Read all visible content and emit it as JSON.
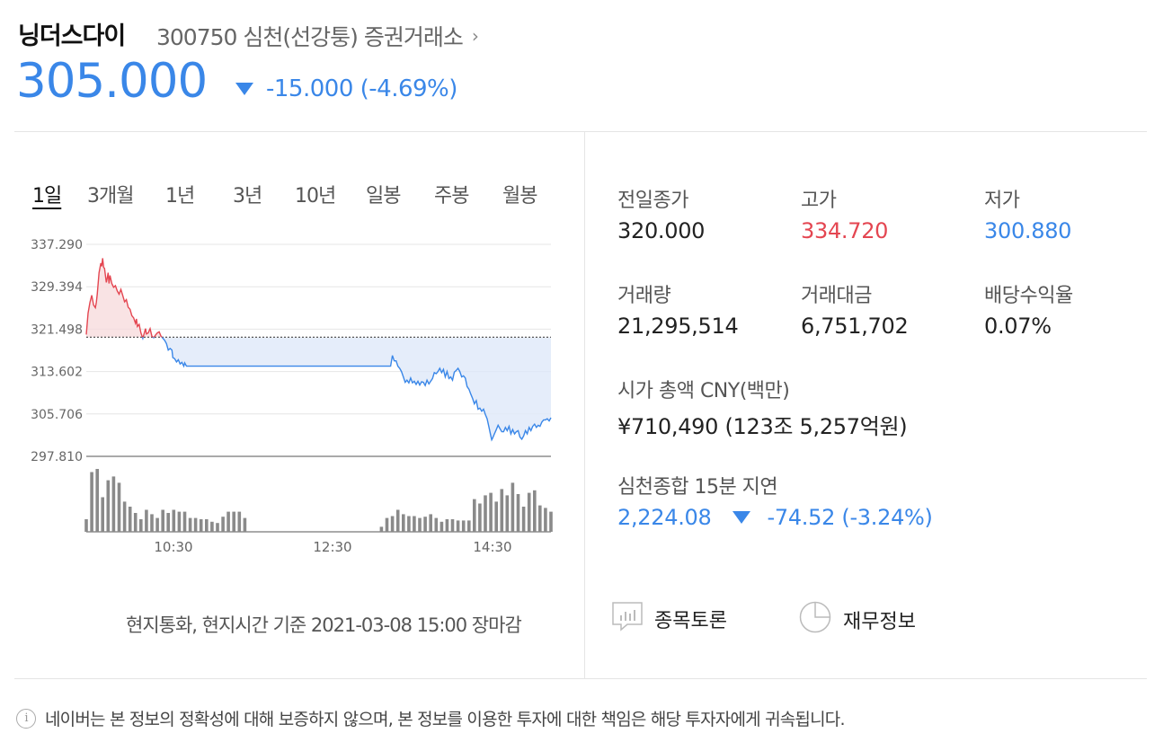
{
  "header": {
    "name": "닝더스다이",
    "meta": "300750 심천(선강퉁) 증권거래소",
    "chevron": "›",
    "price": "305.000",
    "change": "-15.000 (-4.69%)"
  },
  "tabs": [
    "1일",
    "3개월",
    "1년",
    "3년",
    "10년",
    "일봉",
    "주봉",
    "월봉"
  ],
  "active_tab": "1일",
  "chart_data": {
    "type": "line",
    "y_ticks": [
      "337.290",
      "329.394",
      "321.498",
      "313.602",
      "305.706",
      "297.810"
    ],
    "ylim": [
      297.81,
      337.29
    ],
    "x_ticks": [
      "10:30",
      "12:30",
      "14:30"
    ],
    "prev_close": 320.0,
    "up_color": "#e44651",
    "down_color": "#3a87e8",
    "price_series": [
      [
        0,
        320.5
      ],
      [
        2,
        324.5
      ],
      [
        4,
        326.5
      ],
      [
        6,
        327.8
      ],
      [
        8,
        326.0
      ],
      [
        10,
        325.5
      ],
      [
        11,
        326.5
      ],
      [
        12,
        328.0
      ],
      [
        14,
        332.0
      ],
      [
        16,
        333.8
      ],
      [
        17,
        333.2
      ],
      [
        18,
        334.72
      ],
      [
        19,
        333.0
      ],
      [
        20,
        332.8
      ],
      [
        21,
        331.5
      ],
      [
        22,
        330.2
      ],
      [
        23,
        331.0
      ],
      [
        24,
        332.0
      ],
      [
        25,
        330.0
      ],
      [
        26,
        331.5
      ],
      [
        28,
        330.0
      ],
      [
        30,
        329.3
      ],
      [
        32,
        329.6
      ],
      [
        34,
        328.6
      ],
      [
        36,
        328.0
      ],
      [
        38,
        328.9
      ],
      [
        40,
        327.8
      ],
      [
        42,
        326.6
      ],
      [
        44,
        327.0
      ],
      [
        46,
        325.6
      ],
      [
        48,
        325.2
      ],
      [
        50,
        324.0
      ],
      [
        52,
        323.6
      ],
      [
        54,
        322.6
      ],
      [
        55,
        323.4
      ],
      [
        56,
        322.0
      ],
      [
        58,
        322.4
      ],
      [
        60,
        320.8
      ],
      [
        62,
        319.8
      ],
      [
        63,
        320.4
      ],
      [
        65,
        321.6
      ],
      [
        66,
        320.6
      ],
      [
        68,
        320.8
      ],
      [
        70,
        321.6
      ],
      [
        72,
        320.2
      ],
      [
        74,
        319.9
      ],
      [
        76,
        320.4
      ],
      [
        78,
        320.8
      ],
      [
        80,
        321.0
      ],
      [
        82,
        320.2
      ],
      [
        84,
        319.8
      ],
      [
        86,
        319.4
      ],
      [
        88,
        318.8
      ],
      [
        90,
        317.6
      ],
      [
        92,
        317.9
      ],
      [
        94,
        317.6
      ],
      [
        95,
        316.2
      ],
      [
        97,
        316.0
      ],
      [
        99,
        315.4
      ],
      [
        101,
        315.8
      ],
      [
        103,
        315.0
      ],
      [
        105,
        315.3
      ],
      [
        107,
        314.6
      ],
      [
        108,
        315.2
      ],
      [
        110,
        314.6
      ],
      [
        112,
        314.6
      ],
      [
        120,
        314.6
      ],
      [
        160,
        314.6
      ],
      [
        200,
        314.6
      ],
      [
        240,
        314.6
      ],
      [
        300,
        314.6
      ],
      [
        334,
        314.6
      ],
      [
        336,
        316.6
      ],
      [
        338,
        315.6
      ],
      [
        340,
        315.6
      ],
      [
        342,
        314.6
      ],
      [
        344,
        314.2
      ],
      [
        346,
        313.6
      ],
      [
        348,
        312.6
      ],
      [
        350,
        311.6
      ],
      [
        352,
        312.0
      ],
      [
        354,
        311.5
      ],
      [
        356,
        312.4
      ],
      [
        358,
        311.5
      ],
      [
        360,
        311.8
      ],
      [
        362,
        311.2
      ],
      [
        364,
        311.8
      ],
      [
        366,
        311.1
      ],
      [
        368,
        311.7
      ],
      [
        370,
        311.6
      ],
      [
        372,
        311.0
      ],
      [
        374,
        312.0
      ],
      [
        376,
        311.3
      ],
      [
        378,
        311.8
      ],
      [
        380,
        312.3
      ],
      [
        382,
        313.4
      ],
      [
        384,
        313.2
      ],
      [
        386,
        313.6
      ],
      [
        388,
        314.2
      ],
      [
        390,
        313.4
      ],
      [
        392,
        314.0
      ],
      [
        394,
        312.6
      ],
      [
        396,
        313.6
      ],
      [
        398,
        312.3
      ],
      [
        400,
        312.6
      ],
      [
        402,
        312.0
      ],
      [
        404,
        313.5
      ],
      [
        406,
        313.8
      ],
      [
        408,
        314.2
      ],
      [
        410,
        313.6
      ],
      [
        412,
        312.6
      ],
      [
        414,
        312.8
      ],
      [
        416,
        312.4
      ],
      [
        418,
        310.8
      ],
      [
        420,
        310.3
      ],
      [
        422,
        309.4
      ],
      [
        424,
        308.6
      ],
      [
        426,
        307.6
      ],
      [
        428,
        308.2
      ],
      [
        430,
        306.6
      ],
      [
        432,
        306.8
      ],
      [
        434,
        306.2
      ],
      [
        436,
        306.6
      ],
      [
        438,
        305.6
      ],
      [
        440,
        304.8
      ],
      [
        442,
        303.2
      ],
      [
        444,
        301.6
      ],
      [
        445,
        300.88
      ],
      [
        446,
        301.2
      ],
      [
        448,
        302.0
      ],
      [
        450,
        302.8
      ],
      [
        452,
        303.6
      ],
      [
        454,
        303.0
      ],
      [
        456,
        302.4
      ],
      [
        458,
        302.4
      ],
      [
        460,
        303.2
      ],
      [
        462,
        302.6
      ],
      [
        464,
        303.4
      ],
      [
        466,
        302.0
      ],
      [
        468,
        302.8
      ],
      [
        470,
        302.0
      ],
      [
        472,
        302.4
      ],
      [
        474,
        302.6
      ],
      [
        476,
        301.4
      ],
      [
        478,
        301.0
      ],
      [
        480,
        301.6
      ],
      [
        482,
        302.6
      ],
      [
        484,
        302.0
      ],
      [
        486,
        303.2
      ],
      [
        488,
        302.6
      ],
      [
        490,
        303.4
      ],
      [
        492,
        303.8
      ],
      [
        494,
        303.2
      ],
      [
        496,
        303.6
      ],
      [
        498,
        303.4
      ],
      [
        500,
        304.2
      ],
      [
        502,
        304.6
      ],
      [
        504,
        304.6
      ],
      [
        506,
        304.8
      ],
      [
        508,
        304.4
      ],
      [
        510,
        305.0
      ]
    ],
    "volume_bars": [
      [
        0,
        0.2
      ],
      [
        6,
        0.95
      ],
      [
        12,
        1.0
      ],
      [
        18,
        0.55
      ],
      [
        24,
        0.82
      ],
      [
        30,
        0.88
      ],
      [
        36,
        0.78
      ],
      [
        42,
        0.48
      ],
      [
        48,
        0.4
      ],
      [
        54,
        0.3
      ],
      [
        60,
        0.2
      ],
      [
        66,
        0.35
      ],
      [
        72,
        0.28
      ],
      [
        78,
        0.22
      ],
      [
        84,
        0.35
      ],
      [
        90,
        0.3
      ],
      [
        96,
        0.35
      ],
      [
        102,
        0.32
      ],
      [
        108,
        0.32
      ],
      [
        114,
        0.22
      ],
      [
        120,
        0.22
      ],
      [
        126,
        0.2
      ],
      [
        132,
        0.2
      ],
      [
        138,
        0.16
      ],
      [
        144,
        0.14
      ],
      [
        150,
        0.24
      ],
      [
        156,
        0.32
      ],
      [
        162,
        0.32
      ],
      [
        168,
        0.32
      ],
      [
        174,
        0.22
      ],
      [
        324,
        0.08
      ],
      [
        330,
        0.22
      ],
      [
        336,
        0.25
      ],
      [
        342,
        0.35
      ],
      [
        348,
        0.28
      ],
      [
        354,
        0.25
      ],
      [
        360,
        0.25
      ],
      [
        366,
        0.22
      ],
      [
        372,
        0.24
      ],
      [
        378,
        0.28
      ],
      [
        384,
        0.22
      ],
      [
        390,
        0.16
      ],
      [
        396,
        0.2
      ],
      [
        402,
        0.2
      ],
      [
        408,
        0.18
      ],
      [
        414,
        0.18
      ],
      [
        420,
        0.18
      ],
      [
        426,
        0.52
      ],
      [
        432,
        0.45
      ],
      [
        438,
        0.58
      ],
      [
        444,
        0.62
      ],
      [
        450,
        0.48
      ],
      [
        456,
        0.68
      ],
      [
        462,
        0.58
      ],
      [
        468,
        0.78
      ],
      [
        474,
        0.6
      ],
      [
        480,
        0.4
      ],
      [
        486,
        0.62
      ],
      [
        492,
        0.66
      ],
      [
        498,
        0.42
      ],
      [
        504,
        0.38
      ],
      [
        510,
        0.32
      ]
    ]
  },
  "caption": "현지통화, 현지시간 기준 2021-03-08 15:00 장마감",
  "stats": [
    {
      "label": "전일종가",
      "value": "320.000",
      "color": "#222222"
    },
    {
      "label": "고가",
      "value": "334.720",
      "color": "#e44651"
    },
    {
      "label": "저가",
      "value": "300.880",
      "color": "#3a87e8"
    },
    {
      "label": "거래량",
      "value": "21,295,514",
      "color": "#222222"
    },
    {
      "label": "거래대금",
      "value": "6,751,702",
      "color": "#222222"
    },
    {
      "label": "배당수익율",
      "value": "0.07%",
      "color": "#222222"
    }
  ],
  "market_cap": {
    "label": "시가 총액 CNY(백만)",
    "value": "¥710,490 (123조 5,257억원)"
  },
  "index": {
    "label": "심천종합 15분 지연",
    "value": "2,224.08",
    "change": "-74.52 (-3.24%)"
  },
  "links": {
    "discussion": "종목토론",
    "financials": "재무정보"
  },
  "disclaimer": "네이버는 본 정보의 정확성에 대해 보증하지 않으며, 본 정보를 이용한 투자에 대한 책임은 해당 투자자에게 귀속됩니다."
}
